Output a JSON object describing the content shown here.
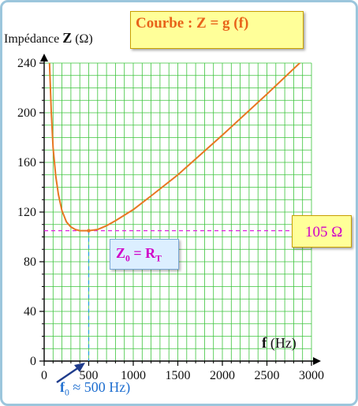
{
  "chart_data": {
    "type": "line",
    "title": "Courbe : Z = g (f)",
    "ylabel": {
      "prefix": "Impédance",
      "symbol": "Z",
      "unit": "(Ω)"
    },
    "xlabel": {
      "symbol": "f",
      "unit": "(Hz)"
    },
    "xlim": [
      0,
      3000
    ],
    "ylim": [
      0,
      240
    ],
    "x_ticks": [
      0,
      500,
      1000,
      1500,
      2000,
      2500,
      3000
    ],
    "y_ticks": [
      0,
      40,
      80,
      120,
      160,
      200,
      240
    ],
    "grid": true,
    "series": [
      {
        "color": "#e87722",
        "x": [
          60,
          80,
          100,
          130,
          160,
          200,
          250,
          300,
          350,
          400,
          450,
          500,
          600,
          700,
          800,
          1000,
          1200,
          1500,
          2000,
          2500,
          3000
        ],
        "y": [
          240,
          201,
          172,
          149,
          134,
          121,
          112,
          108,
          106,
          105,
          105,
          105,
          106,
          109,
          113,
          122,
          133,
          150,
          182,
          215,
          249
        ]
      }
    ],
    "reference_lines": {
      "y": 105,
      "x": 500,
      "color": "#e020e0",
      "x_color": "#2aa0e0"
    },
    "annotations": {
      "value_label": "105 Ω",
      "z0": {
        "main": "Z",
        "sub": "0",
        "rest": " = R",
        "sub2": "T"
      },
      "f0": {
        "main": "f",
        "sub": "0",
        "rest": " ≈ 500 Hz)"
      }
    }
  },
  "colors": {
    "grid": "#3cc43c",
    "curve": "#e87722",
    "title_text": "#e8631a",
    "annotation_text": "#d000c8",
    "f0_text": "#1f6fd0"
  }
}
